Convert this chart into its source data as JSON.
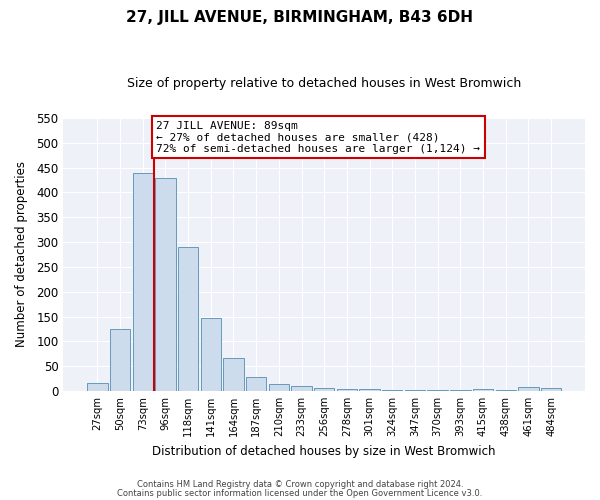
{
  "title": "27, JILL AVENUE, BIRMINGHAM, B43 6DH",
  "subtitle": "Size of property relative to detached houses in West Bromwich",
  "xlabel": "Distribution of detached houses by size in West Bromwich",
  "ylabel": "Number of detached properties",
  "bar_labels": [
    "27sqm",
    "50sqm",
    "73sqm",
    "96sqm",
    "118sqm",
    "141sqm",
    "164sqm",
    "187sqm",
    "210sqm",
    "233sqm",
    "256sqm",
    "278sqm",
    "301sqm",
    "324sqm",
    "347sqm",
    "370sqm",
    "393sqm",
    "415sqm",
    "438sqm",
    "461sqm",
    "484sqm"
  ],
  "bar_values": [
    15,
    125,
    440,
    430,
    291,
    146,
    66,
    29,
    13,
    9,
    5,
    4,
    4,
    1,
    1,
    1,
    1,
    4,
    1,
    7,
    5
  ],
  "bar_color": "#ccdcec",
  "bar_edge_color": "#6699bb",
  "vline_color": "#cc0000",
  "annotation_title": "27 JILL AVENUE: 89sqm",
  "annotation_line1": "← 27% of detached houses are smaller (428)",
  "annotation_line2": "72% of semi-detached houses are larger (1,124) →",
  "annotation_box_facecolor": "#ffffff",
  "annotation_box_edgecolor": "#cc0000",
  "ylim": [
    0,
    550
  ],
  "yticks": [
    0,
    50,
    100,
    150,
    200,
    250,
    300,
    350,
    400,
    450,
    500,
    550
  ],
  "footer1": "Contains HM Land Registry data © Crown copyright and database right 2024.",
  "footer2": "Contains public sector information licensed under the Open Government Licence v3.0.",
  "bg_color": "#ffffff",
  "plot_bg_color": "#eef2f8",
  "grid_color": "#ffffff",
  "title_fontsize": 11,
  "subtitle_fontsize": 9
}
